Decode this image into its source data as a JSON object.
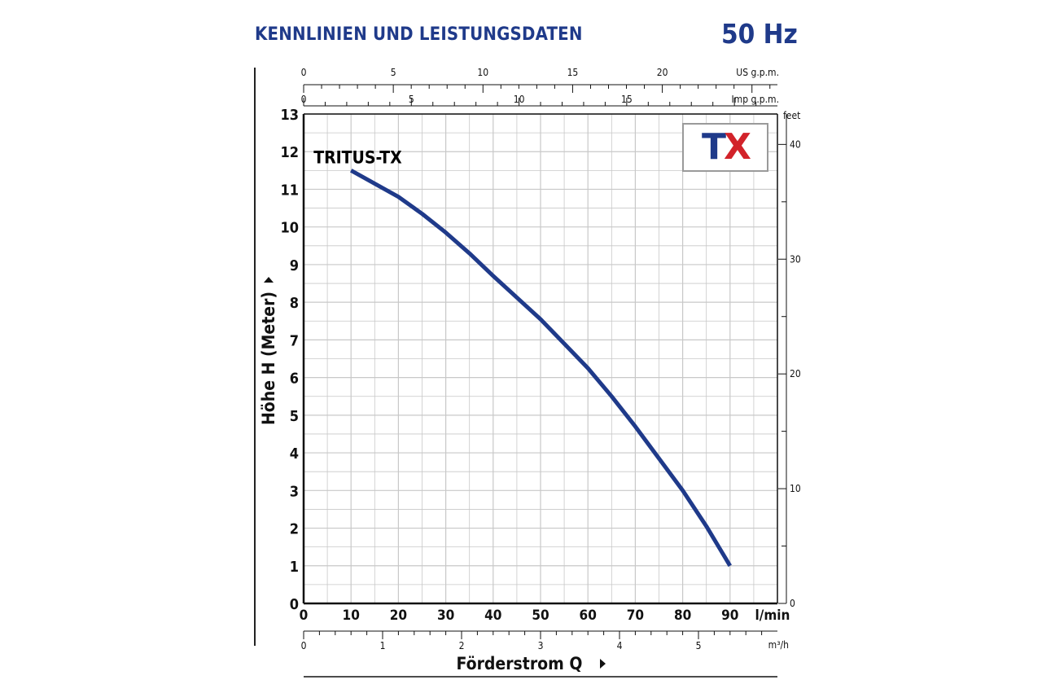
{
  "header": {
    "title": "KENNLINIEN UND LEISTUNGSDATEN",
    "frequency": "50 Hz"
  },
  "logo": {
    "text_t": "T",
    "text_x": "X",
    "colors": {
      "t": "#1f3a8a",
      "x": "#d2232a"
    }
  },
  "colors": {
    "curve": "#1f3a8a",
    "grid": "#c8c8c8",
    "title": "#1f3a8a",
    "axis": "#111111"
  },
  "chart_data": {
    "type": "line",
    "title": "KENNLINIEN UND LEISTUNGSDATEN",
    "series": [
      {
        "name": "TRITUS-TX",
        "x": [
          10,
          20,
          25,
          30,
          35,
          40,
          50,
          55,
          60,
          65,
          70,
          75,
          80,
          85,
          90
        ],
        "y": [
          11.5,
          10.8,
          10.35,
          9.85,
          9.3,
          8.7,
          7.55,
          6.9,
          6.25,
          5.5,
          4.7,
          3.85,
          3.0,
          2.05,
          1.0
        ]
      }
    ],
    "xlabel": "Förderstrom Q",
    "x_unit": "l/min",
    "xlim": [
      0,
      100
    ],
    "x_ticks": [
      "0",
      "10",
      "20",
      "30",
      "40",
      "50",
      "60",
      "70",
      "80",
      "90"
    ],
    "ylabel": "Höhe H (Meter)",
    "ylim": [
      0,
      13
    ],
    "y_ticks": [
      "0",
      "1",
      "2",
      "3",
      "4",
      "5",
      "6",
      "7",
      "8",
      "9",
      "10",
      "11",
      "12",
      "13"
    ],
    "grid": true,
    "secondary_axes": {
      "us_gpm": {
        "label": "US g.p.m.",
        "ticks": [
          "0",
          "5",
          "10",
          "15",
          "20"
        ],
        "lpm_per_unit": 3.785
      },
      "imp_gpm": {
        "label": "Imp g.p.m.",
        "ticks": [
          "0",
          "5",
          "10",
          "15"
        ],
        "lpm_per_unit": 4.546
      },
      "feet": {
        "label": "feet",
        "ticks": [
          "0",
          "10",
          "20",
          "30",
          "40"
        ],
        "m_per_unit": 0.3048
      },
      "m3h": {
        "label": "m³/h",
        "ticks": [
          "0",
          "1",
          "2",
          "3",
          "4",
          "5"
        ],
        "lpm_per_unit": 16.6667
      }
    }
  }
}
